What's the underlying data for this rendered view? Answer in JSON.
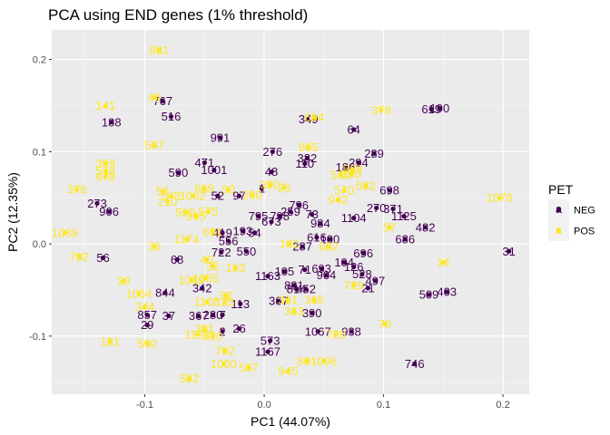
{
  "chart_data": {
    "type": "scatter",
    "title": "PCA using END genes (1% threshold)",
    "xlabel": "PC1 (44.07%)",
    "ylabel": "PC2 (12.35%)",
    "xlim": [
      -0.178,
      0.222
    ],
    "ylim": [
      -0.163,
      0.232
    ],
    "x_ticks": [
      -0.1,
      0.0,
      0.1,
      0.2
    ],
    "x_tick_labels": [
      "-0.1",
      "0.0",
      "0.1",
      "0.2"
    ],
    "y_ticks": [
      -0.1,
      0.0,
      0.1,
      0.2
    ],
    "y_tick_labels": [
      "-0.1",
      "0.0",
      "0.1",
      "0.2"
    ],
    "grid": true,
    "legend": {
      "title": "PET",
      "position": "right"
    },
    "series": [
      {
        "name": "NEG",
        "color": "#440154",
        "points": [
          {
            "x": -0.085,
            "y": 0.155,
            "label": "767"
          },
          {
            "x": -0.078,
            "y": 0.138,
            "label": "516"
          },
          {
            "x": -0.128,
            "y": 0.132,
            "label": "188"
          },
          {
            "x": -0.037,
            "y": 0.115,
            "label": "991"
          },
          {
            "x": 0.007,
            "y": 0.1,
            "label": "276"
          },
          {
            "x": 0.036,
            "y": 0.093,
            "label": "382"
          },
          {
            "x": 0.034,
            "y": 0.087,
            "label": "110"
          },
          {
            "x": 0.037,
            "y": 0.135,
            "label": "349"
          },
          {
            "x": 0.075,
            "y": 0.124,
            "label": "64"
          },
          {
            "x": 0.14,
            "y": 0.146,
            "label": "619"
          },
          {
            "x": 0.147,
            "y": 0.147,
            "label": "190"
          },
          {
            "x": 0.092,
            "y": 0.098,
            "label": "289"
          },
          {
            "x": 0.079,
            "y": 0.088,
            "label": "294"
          },
          {
            "x": 0.068,
            "y": 0.083,
            "label": "186"
          },
          {
            "x": -0.05,
            "y": 0.088,
            "label": "471"
          },
          {
            "x": -0.072,
            "y": 0.077,
            "label": "590"
          },
          {
            "x": -0.042,
            "y": 0.08,
            "label": "1001"
          },
          {
            "x": 0.006,
            "y": 0.078,
            "label": "48"
          },
          {
            "x": -0.039,
            "y": 0.052,
            "label": "52"
          },
          {
            "x": -0.021,
            "y": 0.052,
            "label": "97"
          },
          {
            "x": -0.002,
            "y": 0.06,
            "label": "1"
          },
          {
            "x": 0.105,
            "y": 0.058,
            "label": "698"
          },
          {
            "x": -0.14,
            "y": 0.044,
            "label": "273"
          },
          {
            "x": -0.13,
            "y": 0.035,
            "label": "906"
          },
          {
            "x": 0.094,
            "y": 0.039,
            "label": "270"
          },
          {
            "x": 0.108,
            "y": 0.038,
            "label": "371"
          },
          {
            "x": 0.117,
            "y": 0.03,
            "label": "1125"
          },
          {
            "x": 0.135,
            "y": 0.018,
            "label": "482"
          },
          {
            "x": 0.118,
            "y": 0.005,
            "label": "686"
          },
          {
            "x": 0.029,
            "y": 0.042,
            "label": "796"
          },
          {
            "x": 0.022,
            "y": 0.035,
            "label": "259"
          },
          {
            "x": 0.013,
            "y": 0.03,
            "label": "798"
          },
          {
            "x": 0.04,
            "y": 0.032,
            "label": "73"
          },
          {
            "x": -0.005,
            "y": 0.03,
            "label": "795"
          },
          {
            "x": 0.006,
            "y": 0.024,
            "label": "673"
          },
          {
            "x": 0.047,
            "y": 0.022,
            "label": "984"
          },
          {
            "x": 0.075,
            "y": 0.028,
            "label": "1104"
          },
          {
            "x": 0.044,
            "y": 0.007,
            "label": "616"
          },
          {
            "x": 0.055,
            "y": 0.005,
            "label": "100"
          },
          {
            "x": -0.035,
            "y": 0.012,
            "label": "419"
          },
          {
            "x": -0.018,
            "y": 0.014,
            "label": "193"
          },
          {
            "x": -0.008,
            "y": 0.012,
            "label": "54"
          },
          {
            "x": -0.03,
            "y": 0.003,
            "label": "556"
          },
          {
            "x": 0.032,
            "y": -0.003,
            "label": "287"
          },
          {
            "x": -0.036,
            "y": -0.009,
            "label": "722"
          },
          {
            "x": -0.015,
            "y": -0.008,
            "label": "550"
          },
          {
            "x": 0.083,
            "y": -0.01,
            "label": "696"
          },
          {
            "x": -0.135,
            "y": -0.015,
            "label": "56"
          },
          {
            "x": -0.073,
            "y": -0.017,
            "label": "68"
          },
          {
            "x": 0.067,
            "y": -0.02,
            "label": "104"
          },
          {
            "x": 0.075,
            "y": -0.025,
            "label": "126"
          },
          {
            "x": 0.048,
            "y": -0.027,
            "label": "693"
          },
          {
            "x": 0.017,
            "y": -0.03,
            "label": "105"
          },
          {
            "x": 0.034,
            "y": -0.028,
            "label": "71"
          },
          {
            "x": 0.052,
            "y": -0.034,
            "label": "904"
          },
          {
            "x": 0.082,
            "y": -0.033,
            "label": "528"
          },
          {
            "x": 0.093,
            "y": -0.04,
            "label": "497"
          },
          {
            "x": 0.087,
            "y": -0.048,
            "label": "21"
          },
          {
            "x": 0.003,
            "y": -0.035,
            "label": "1163"
          },
          {
            "x": 0.025,
            "y": -0.045,
            "label": "881"
          },
          {
            "x": 0.035,
            "y": -0.049,
            "label": "452"
          },
          {
            "x": 0.027,
            "y": -0.049,
            "label": "814"
          },
          {
            "x": -0.052,
            "y": -0.048,
            "label": "342"
          },
          {
            "x": -0.083,
            "y": -0.053,
            "label": "844"
          },
          {
            "x": 0.138,
            "y": -0.055,
            "label": "509"
          },
          {
            "x": 0.153,
            "y": -0.052,
            "label": "403"
          },
          {
            "x": -0.02,
            "y": -0.065,
            "label": "113"
          },
          {
            "x": 0.012,
            "y": -0.062,
            "label": "367"
          },
          {
            "x": -0.098,
            "y": -0.077,
            "label": "857"
          },
          {
            "x": -0.08,
            "y": -0.078,
            "label": "37"
          },
          {
            "x": -0.055,
            "y": -0.078,
            "label": "367"
          },
          {
            "x": -0.043,
            "y": -0.077,
            "label": "280"
          },
          {
            "x": -0.035,
            "y": -0.077,
            "label": "7"
          },
          {
            "x": 0.04,
            "y": -0.075,
            "label": "390"
          },
          {
            "x": -0.098,
            "y": -0.088,
            "label": "29"
          },
          {
            "x": 0.005,
            "y": -0.105,
            "label": "573"
          },
          {
            "x": -0.021,
            "y": -0.092,
            "label": "26"
          },
          {
            "x": 0.045,
            "y": -0.095,
            "label": "1067"
          },
          {
            "x": 0.073,
            "y": -0.095,
            "label": "938"
          },
          {
            "x": -0.035,
            "y": -0.095,
            "label": "2"
          },
          {
            "x": 0.003,
            "y": -0.117,
            "label": "1167"
          },
          {
            "x": 0.126,
            "y": -0.13,
            "label": "746"
          },
          {
            "x": 0.205,
            "y": -0.008,
            "label": "31"
          }
        ]
      },
      {
        "name": "POS",
        "color": "#FDE725",
        "points": [
          {
            "x": -0.088,
            "y": 0.21,
            "label": "881"
          },
          {
            "x": -0.092,
            "y": 0.159,
            "label": "49"
          },
          {
            "x": -0.133,
            "y": 0.15,
            "label": "141"
          },
          {
            "x": -0.092,
            "y": 0.107,
            "label": "587"
          },
          {
            "x": 0.042,
            "y": 0.137,
            "label": "694"
          },
          {
            "x": 0.098,
            "y": 0.145,
            "label": "378"
          },
          {
            "x": 0.037,
            "y": 0.105,
            "label": "965"
          },
          {
            "x": 0.074,
            "y": 0.081,
            "label": "568"
          },
          {
            "x": 0.073,
            "y": 0.076,
            "label": "390"
          },
          {
            "x": 0.064,
            "y": 0.075,
            "label": "530"
          },
          {
            "x": -0.133,
            "y": 0.087,
            "label": "399"
          },
          {
            "x": -0.133,
            "y": 0.079,
            "label": "538"
          },
          {
            "x": -0.133,
            "y": 0.073,
            "label": "678"
          },
          {
            "x": -0.157,
            "y": 0.059,
            "label": "376"
          },
          {
            "x": 0.005,
            "y": 0.064,
            "label": "380"
          },
          {
            "x": 0.017,
            "y": 0.061,
            "label": "25"
          },
          {
            "x": 0.067,
            "y": 0.058,
            "label": "570"
          },
          {
            "x": 0.085,
            "y": 0.063,
            "label": "582"
          },
          {
            "x": 0.062,
            "y": 0.048,
            "label": "942"
          },
          {
            "x": -0.085,
            "y": 0.057,
            "label": "56"
          },
          {
            "x": -0.081,
            "y": 0.046,
            "label": "210"
          },
          {
            "x": -0.078,
            "y": 0.052,
            "label": "548"
          },
          {
            "x": -0.06,
            "y": 0.052,
            "label": "1062"
          },
          {
            "x": -0.05,
            "y": 0.06,
            "label": "669"
          },
          {
            "x": -0.03,
            "y": 0.059,
            "label": "90"
          },
          {
            "x": -0.01,
            "y": 0.053,
            "label": "280"
          },
          {
            "x": -0.066,
            "y": 0.034,
            "label": "590"
          },
          {
            "x": -0.047,
            "y": 0.035,
            "label": "575"
          },
          {
            "x": -0.057,
            "y": 0.03,
            "label": "395"
          },
          {
            "x": 0.197,
            "y": 0.05,
            "label": "1078"
          },
          {
            "x": -0.167,
            "y": 0.012,
            "label": "1089"
          },
          {
            "x": -0.155,
            "y": -0.014,
            "label": "792"
          },
          {
            "x": -0.092,
            "y": -0.003,
            "label": "36"
          },
          {
            "x": -0.065,
            "y": 0.005,
            "label": "1174"
          },
          {
            "x": -0.043,
            "y": 0.013,
            "label": "691"
          },
          {
            "x": 0.021,
            "y": 0.0,
            "label": "102"
          },
          {
            "x": 0.054,
            "y": -0.003,
            "label": "662"
          },
          {
            "x": 0.105,
            "y": 0.018,
            "label": "57"
          },
          {
            "x": 0.15,
            "y": -0.02,
            "label": "14"
          },
          {
            "x": -0.048,
            "y": -0.017,
            "label": "40"
          },
          {
            "x": -0.043,
            "y": -0.024,
            "label": "32"
          },
          {
            "x": -0.024,
            "y": -0.026,
            "label": "153"
          },
          {
            "x": -0.049,
            "y": -0.037,
            "label": "1055"
          },
          {
            "x": -0.061,
            "y": -0.039,
            "label": "1019"
          },
          {
            "x": -0.032,
            "y": -0.056,
            "label": "92"
          },
          {
            "x": -0.118,
            "y": -0.04,
            "label": "39"
          },
          {
            "x": -0.105,
            "y": -0.054,
            "label": "1064"
          },
          {
            "x": -0.1,
            "y": -0.068,
            "label": "344"
          },
          {
            "x": -0.048,
            "y": -0.063,
            "label": "1108"
          },
          {
            "x": -0.033,
            "y": -0.063,
            "label": "125"
          },
          {
            "x": 0.02,
            "y": -0.061,
            "label": "361"
          },
          {
            "x": 0.042,
            "y": -0.061,
            "label": "365"
          },
          {
            "x": 0.025,
            "y": -0.073,
            "label": "363"
          },
          {
            "x": 0.075,
            "y": -0.045,
            "label": "729"
          },
          {
            "x": -0.05,
            "y": -0.092,
            "label": "381"
          },
          {
            "x": -0.056,
            "y": -0.098,
            "label": "1193"
          },
          {
            "x": -0.043,
            "y": -0.1,
            "label": "820"
          },
          {
            "x": -0.129,
            "y": -0.106,
            "label": "181"
          },
          {
            "x": -0.098,
            "y": -0.108,
            "label": "590"
          },
          {
            "x": -0.033,
            "y": -0.116,
            "label": "702"
          },
          {
            "x": -0.034,
            "y": -0.13,
            "label": "1050"
          },
          {
            "x": -0.013,
            "y": -0.134,
            "label": "587"
          },
          {
            "x": 0.02,
            "y": -0.138,
            "label": "945"
          },
          {
            "x": 0.036,
            "y": -0.127,
            "label": "801"
          },
          {
            "x": 0.05,
            "y": -0.127,
            "label": "1096"
          },
          {
            "x": 0.06,
            "y": -0.098,
            "label": "728"
          },
          {
            "x": 0.101,
            "y": -0.087,
            "label": "79"
          },
          {
            "x": -0.063,
            "y": -0.146,
            "label": "582"
          }
        ]
      }
    ]
  }
}
